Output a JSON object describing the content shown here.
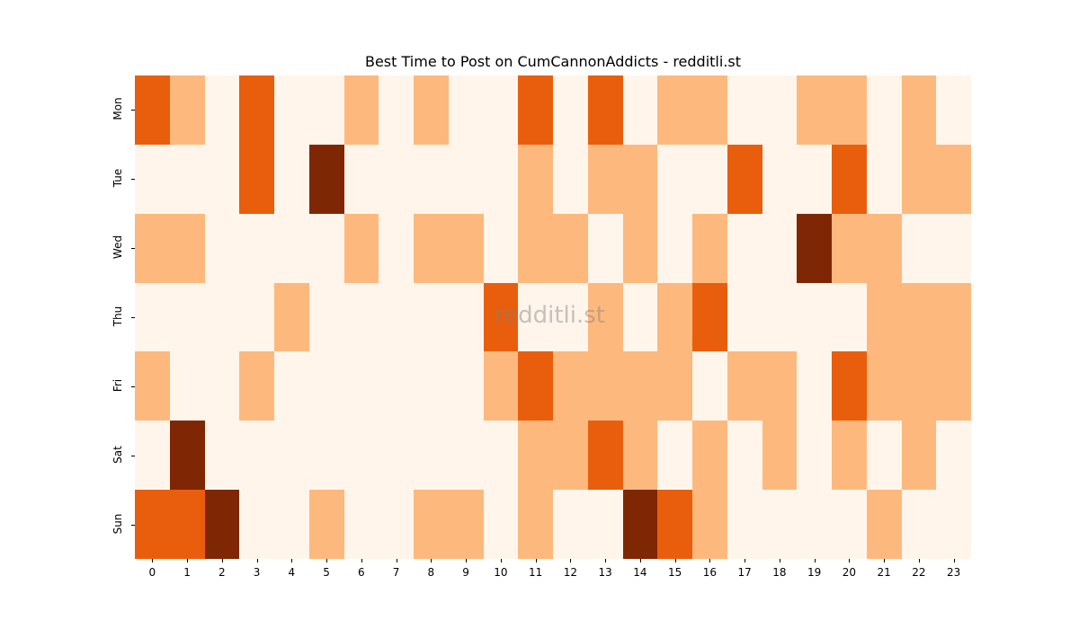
{
  "chart_data": {
    "type": "heatmap",
    "title": "Best Time to Post on CumCannonAddicts - redditli.st",
    "xlabel": "",
    "ylabel": "",
    "x": [
      "0",
      "1",
      "2",
      "3",
      "4",
      "5",
      "6",
      "7",
      "8",
      "9",
      "10",
      "11",
      "12",
      "13",
      "14",
      "15",
      "16",
      "17",
      "18",
      "19",
      "20",
      "21",
      "22",
      "23"
    ],
    "y": [
      "Mon",
      "Tue",
      "Wed",
      "Thu",
      "Fri",
      "Sat",
      "Sun"
    ],
    "colormap": "Oranges",
    "level_colors": [
      "#fff5eb",
      "#fdb97d",
      "#e95e0d",
      "#7f2704"
    ],
    "values": [
      [
        2,
        1,
        0,
        2,
        0,
        0,
        1,
        0,
        1,
        0,
        0,
        2,
        0,
        2,
        0,
        1,
        1,
        0,
        0,
        1,
        1,
        0,
        1,
        0
      ],
      [
        0,
        0,
        0,
        2,
        0,
        3,
        0,
        0,
        0,
        0,
        0,
        1,
        0,
        1,
        1,
        0,
        0,
        2,
        0,
        0,
        2,
        0,
        1,
        1
      ],
      [
        1,
        1,
        0,
        0,
        0,
        0,
        1,
        0,
        1,
        1,
        0,
        1,
        1,
        0,
        1,
        0,
        1,
        0,
        0,
        3,
        1,
        1,
        0,
        0
      ],
      [
        0,
        0,
        0,
        0,
        1,
        0,
        0,
        0,
        0,
        0,
        2,
        0,
        0,
        1,
        0,
        1,
        2,
        0,
        0,
        0,
        0,
        1,
        1,
        1
      ],
      [
        1,
        0,
        0,
        1,
        0,
        0,
        0,
        0,
        0,
        0,
        1,
        2,
        1,
        1,
        1,
        1,
        0,
        1,
        1,
        0,
        2,
        1,
        1,
        1
      ],
      [
        0,
        3,
        0,
        0,
        0,
        0,
        0,
        0,
        0,
        0,
        0,
        1,
        1,
        2,
        1,
        0,
        1,
        0,
        1,
        0,
        1,
        0,
        1,
        0
      ],
      [
        2,
        2,
        3,
        0,
        0,
        1,
        0,
        0,
        1,
        1,
        0,
        1,
        0,
        0,
        3,
        2,
        1,
        0,
        0,
        0,
        0,
        1,
        0,
        0
      ]
    ],
    "colorbar": false,
    "grid": false
  },
  "watermark": "redditli.st"
}
